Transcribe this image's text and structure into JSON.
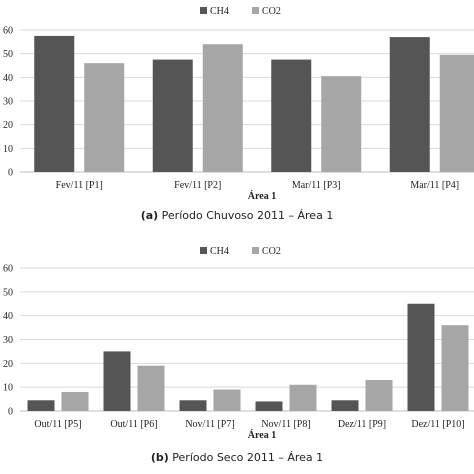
{
  "chart_data": [
    {
      "type": "bar",
      "caption_letter": "(a)",
      "caption_text": "Período Chuvoso 2011 – Área 1",
      "xlabel": "Área 1",
      "ylim": [
        0,
        60
      ],
      "yticks": [
        "0",
        "10",
        "20",
        "30",
        "40",
        "50",
        "60"
      ],
      "yticks_visible": [
        "0",
        "10",
        "20",
        "30",
        "40",
        "50",
        "60"
      ],
      "categories": [
        "Fev/11 [P1]",
        "Fev/11 [P2]",
        "Mar/11 [P3]",
        "Mar/11 [P4]"
      ],
      "series": [
        {
          "name": "CH4",
          "color": "#555555",
          "values": [
            57.5,
            47.5,
            47.5,
            57
          ]
        },
        {
          "name": "CO2",
          "color": "#a6a6a6",
          "values": [
            46,
            54,
            40.5,
            49.5
          ]
        }
      ],
      "legend": "top-center",
      "grid": true
    },
    {
      "type": "bar",
      "caption_letter": "(b)",
      "caption_text": "Período Seco 2011 – Área 1",
      "xlabel": "Área 1",
      "ylim": [
        0,
        60
      ],
      "yticks": [
        "0",
        "10",
        "20",
        "30",
        "40",
        "50",
        "60"
      ],
      "categories": [
        "Out/11 [P5]",
        "Out/11 [P6]",
        "Nov/11 [P7]",
        "Nov/11 [P8]",
        "Dez/11 [P9]",
        "Dez/11 [P10]"
      ],
      "series": [
        {
          "name": "CH4",
          "color": "#555555",
          "values": [
            4.5,
            25,
            4.5,
            4,
            4.5,
            45
          ]
        },
        {
          "name": "CO2",
          "color": "#a6a6a6",
          "values": [
            8,
            19,
            9,
            11,
            13,
            36
          ]
        }
      ],
      "legend": "top-center",
      "grid": true
    }
  ]
}
